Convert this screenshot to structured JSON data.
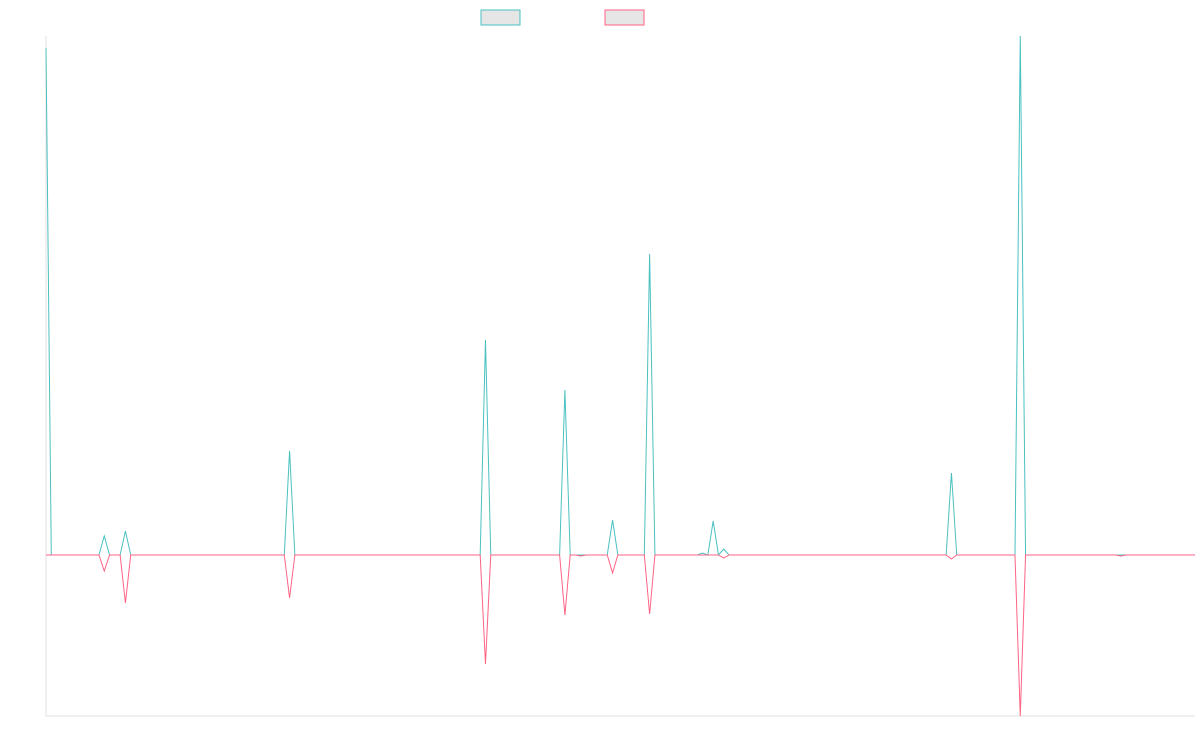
{
  "chart_data": {
    "type": "line",
    "x": [
      0,
      1,
      10,
      11,
      12,
      14,
      15,
      16,
      45,
      46,
      47,
      82,
      83,
      84,
      97,
      98,
      99,
      100,
      101,
      102,
      106,
      107,
      108,
      113,
      114,
      115,
      123,
      124,
      125,
      126,
      127,
      128,
      129,
      170,
      171,
      172,
      183,
      184,
      185,
      202,
      203,
      204,
      217
    ],
    "series": [
      {
        "color": "#4bc0c0",
        "values": [
          507,
          0,
          0,
          19,
          0,
          0,
          24,
          0,
          0,
          104,
          0,
          0,
          215,
          0,
          0,
          165,
          0,
          0,
          0,
          0,
          0,
          35,
          0,
          0,
          301,
          0,
          0,
          2,
          0,
          34,
          0,
          6,
          0,
          0,
          82,
          0,
          0,
          519,
          0,
          0,
          0,
          0,
          0
        ]
      },
      {
        "color": "#ff6384",
        "values": [
          0,
          0,
          0,
          -16,
          0,
          0,
          -48,
          0,
          0,
          -43,
          0,
          0,
          -109,
          0,
          0,
          -60,
          0,
          0,
          -1,
          0,
          0,
          -18,
          0,
          0,
          -59,
          0,
          0,
          0,
          0,
          0,
          0,
          -3,
          0,
          0,
          -4,
          0,
          0,
          -161,
          0,
          0,
          -1,
          0,
          0
        ]
      }
    ],
    "xlim": [
      0,
      217
    ],
    "ylim": [
      -161,
      519
    ],
    "legend": "top"
  }
}
